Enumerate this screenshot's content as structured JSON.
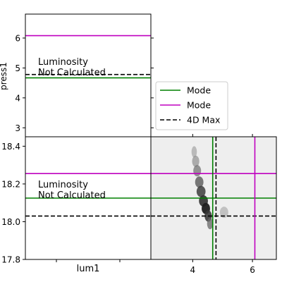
{
  "figure": {
    "background": "#ffffff",
    "colors": {
      "mode_lum": "#008000",
      "mode_press": "#bf00bf",
      "max4d": "#000000",
      "panel_bg": "#eeeeee"
    }
  },
  "chart_data": [
    {
      "panel": "top-left",
      "type": "line",
      "ylabel": "press1",
      "ylim": [
        2.7,
        6.8
      ],
      "yticks": [
        3,
        4,
        5,
        6
      ],
      "hlines": [
        {
          "legend": "mode_press",
          "y": 6.08
        },
        {
          "legend": "max4d",
          "y": 4.78
        },
        {
          "legend": "mode_lum",
          "y": 4.67
        }
      ],
      "annotation": [
        "Luminosity",
        "Not Calculated"
      ]
    },
    {
      "panel": "bottom-left",
      "type": "line",
      "xlabel": "lum1",
      "ylim": [
        17.8,
        18.45
      ],
      "yticks": [
        "17.8",
        "18.0",
        "18.2",
        "18.4"
      ],
      "hlines": [
        {
          "legend": "mode_press",
          "y": 18.255
        },
        {
          "legend": "mode_lum",
          "y": 18.125
        },
        {
          "legend": "max4d",
          "y": 18.03
        }
      ],
      "annotation": [
        "Luminosity",
        "Not Calculated"
      ]
    },
    {
      "panel": "bottom-right",
      "type": "heatmap",
      "xlim": [
        2.6,
        6.8
      ],
      "ylim": [
        17.8,
        18.45
      ],
      "xticks": [
        4,
        6
      ],
      "vlines": [
        {
          "legend": "mode_lum",
          "x": 4.67
        },
        {
          "legend": "max4d",
          "x": 4.78
        },
        {
          "legend": "mode_press",
          "x": 6.08
        }
      ],
      "hlines": [
        {
          "legend": "mode_press",
          "y": 18.255
        },
        {
          "legend": "mode_lum",
          "y": 18.125
        },
        {
          "legend": "max4d",
          "y": 18.03
        }
      ],
      "density_ridge": [
        {
          "x": 4.05,
          "y": 18.37,
          "w": 0.09,
          "level": 0.25
        },
        {
          "x": 4.1,
          "y": 18.32,
          "w": 0.12,
          "level": 0.35
        },
        {
          "x": 4.15,
          "y": 18.27,
          "w": 0.13,
          "level": 0.5
        },
        {
          "x": 4.22,
          "y": 18.21,
          "w": 0.14,
          "level": 0.65
        },
        {
          "x": 4.28,
          "y": 18.16,
          "w": 0.15,
          "level": 0.8
        },
        {
          "x": 4.36,
          "y": 18.11,
          "w": 0.15,
          "level": 0.9
        },
        {
          "x": 4.44,
          "y": 18.07,
          "w": 0.14,
          "level": 1.0
        },
        {
          "x": 4.52,
          "y": 18.03,
          "w": 0.12,
          "level": 0.85
        },
        {
          "x": 4.58,
          "y": 17.99,
          "w": 0.1,
          "level": 0.55
        },
        {
          "x": 5.05,
          "y": 18.05,
          "w": 0.14,
          "level": 0.2
        }
      ]
    }
  ],
  "legend": {
    "placement": "upper-right",
    "entries": [
      {
        "key": "mode_lum",
        "label": "Mode",
        "style": "solid"
      },
      {
        "key": "mode_press",
        "label": "Mode",
        "style": "solid"
      },
      {
        "key": "max4d",
        "label": "4D Max",
        "style": "dashed"
      }
    ]
  }
}
